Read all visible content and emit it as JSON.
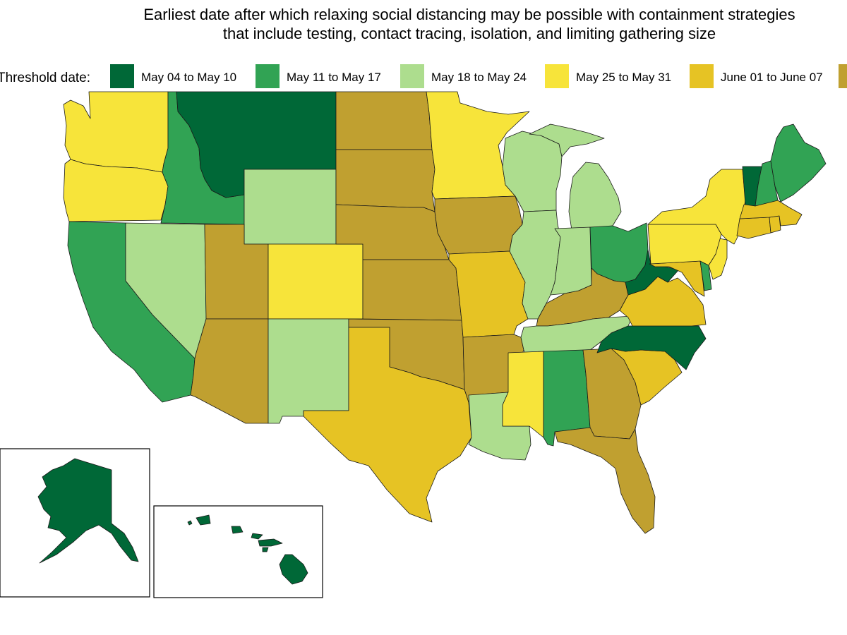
{
  "title_lines": [
    "Earliest date after which relaxing social distancing may be possible with containment strategies",
    "that include testing, contact tracing, isolation, and limiting gathering size"
  ],
  "legend": {
    "title": "Threshold date:",
    "items": [
      {
        "label": "May 04 to May 10",
        "color": "#006837"
      },
      {
        "label": "May 11 to May 17",
        "color": "#31a354"
      },
      {
        "label": "May 18 to May 24",
        "color": "#addd8e"
      },
      {
        "label": "May 25 to May 31",
        "color": "#f7e43a"
      },
      {
        "label": "June 01 to June 07",
        "color": "#e6c324"
      },
      {
        "label": "",
        "color": "#c0a030"
      }
    ]
  },
  "states": [
    {
      "id": "WA",
      "cat": 3
    },
    {
      "id": "OR",
      "cat": 3
    },
    {
      "id": "CA",
      "cat": 1
    },
    {
      "id": "ID",
      "cat": 1
    },
    {
      "id": "NV",
      "cat": 2
    },
    {
      "id": "MT",
      "cat": 0
    },
    {
      "id": "WY",
      "cat": 2
    },
    {
      "id": "UT",
      "cat": 5
    },
    {
      "id": "AZ",
      "cat": 5
    },
    {
      "id": "CO",
      "cat": 3
    },
    {
      "id": "NM",
      "cat": 2
    },
    {
      "id": "ND",
      "cat": 5
    },
    {
      "id": "SD",
      "cat": 5
    },
    {
      "id": "NE",
      "cat": 5
    },
    {
      "id": "KS",
      "cat": 5
    },
    {
      "id": "OK",
      "cat": 5
    },
    {
      "id": "TX",
      "cat": 4
    },
    {
      "id": "MN",
      "cat": 3
    },
    {
      "id": "IA",
      "cat": 5
    },
    {
      "id": "MO",
      "cat": 4
    },
    {
      "id": "AR",
      "cat": 5
    },
    {
      "id": "LA",
      "cat": 2
    },
    {
      "id": "WI",
      "cat": 2
    },
    {
      "id": "MI",
      "cat": 2
    },
    {
      "id": "IL",
      "cat": 2
    },
    {
      "id": "IN",
      "cat": 2
    },
    {
      "id": "OH",
      "cat": 1
    },
    {
      "id": "KY",
      "cat": 5
    },
    {
      "id": "TN",
      "cat": 2
    },
    {
      "id": "MS",
      "cat": 3
    },
    {
      "id": "AL",
      "cat": 1
    },
    {
      "id": "GA",
      "cat": 5
    },
    {
      "id": "FL",
      "cat": 5
    },
    {
      "id": "SC",
      "cat": 4
    },
    {
      "id": "NC",
      "cat": 0
    },
    {
      "id": "VA",
      "cat": 4
    },
    {
      "id": "WV",
      "cat": 0
    },
    {
      "id": "MD",
      "cat": 4
    },
    {
      "id": "DE",
      "cat": 1
    },
    {
      "id": "NJ",
      "cat": 3
    },
    {
      "id": "PA",
      "cat": 3
    },
    {
      "id": "NY",
      "cat": 3
    },
    {
      "id": "CT",
      "cat": 4
    },
    {
      "id": "RI",
      "cat": 4
    },
    {
      "id": "MA",
      "cat": 4
    },
    {
      "id": "VT",
      "cat": 0
    },
    {
      "id": "NH",
      "cat": 1
    },
    {
      "id": "ME",
      "cat": 1
    },
    {
      "id": "AK",
      "cat": 0
    },
    {
      "id": "HI",
      "cat": 0
    }
  ]
}
